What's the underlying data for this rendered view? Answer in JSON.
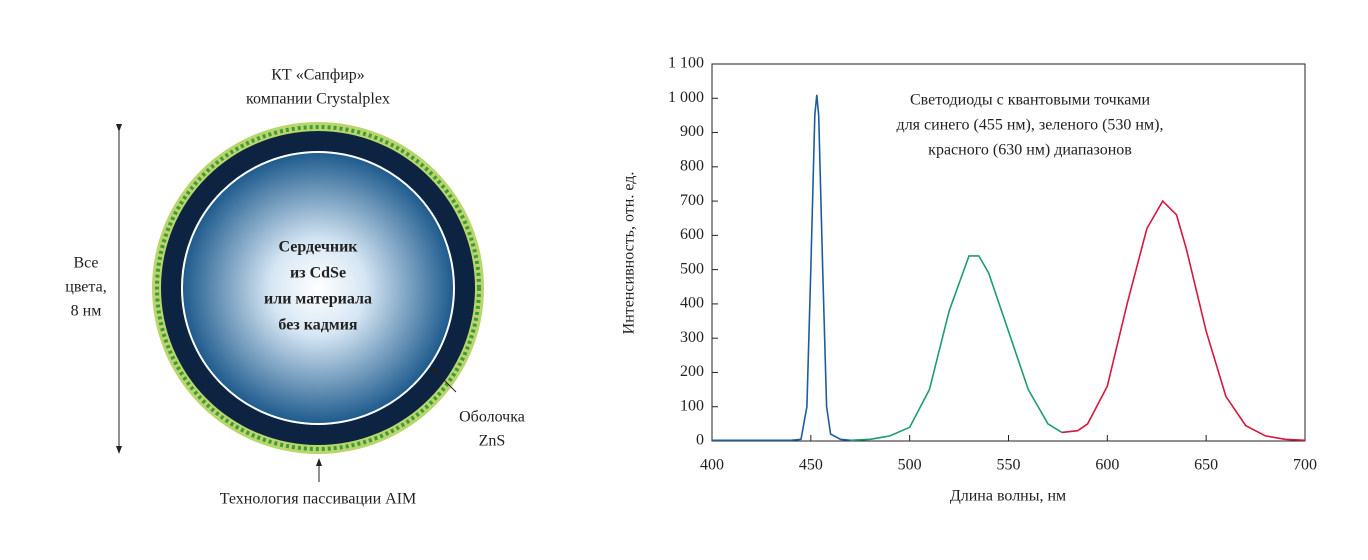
{
  "diagram": {
    "title": [
      "КТ «Сапфир»",
      "компании Crystalplex"
    ],
    "size_label": [
      "Все",
      "цвета,",
      "8 нм"
    ],
    "core_label": [
      "Сердечник",
      "из CdSe",
      "или материала",
      "без кадмия"
    ],
    "shell_label": [
      "Оболочка",
      "ZnS"
    ],
    "bottom_label": "Технология пассивации AIM"
  },
  "chart_data": {
    "type": "line",
    "annotation": [
      "Светодиоды с квантовыми точками",
      "для синего (455 нм), зеленого (530 нм),",
      "красного (630 нм) диапазонов"
    ],
    "xlabel": "Длина волны, нм",
    "ylabel": "Интенсивность, отн. ед.",
    "x": [
      400,
      440,
      445,
      448,
      450,
      452,
      453,
      454,
      456,
      458,
      460,
      465,
      470,
      480,
      490,
      500,
      510,
      520,
      530,
      535,
      540,
      550,
      560,
      570,
      577,
      585,
      590,
      600,
      610,
      620,
      628,
      635,
      640,
      650,
      660,
      670,
      680,
      690,
      700
    ],
    "series": [
      {
        "color": "#1f5c9e",
        "values": [
          2,
          2,
          5,
          100,
          500,
          950,
          1010,
          950,
          500,
          100,
          20,
          5,
          2,
          null,
          null,
          null,
          null,
          null,
          null,
          null,
          null,
          null,
          null,
          null,
          null,
          null,
          null,
          null,
          null,
          null,
          null,
          null,
          null,
          null,
          null,
          null,
          null,
          null,
          null
        ]
      },
      {
        "color": "#1e9a7a",
        "values": [
          null,
          null,
          null,
          null,
          null,
          null,
          null,
          null,
          null,
          null,
          null,
          null,
          2,
          5,
          15,
          40,
          150,
          380,
          540,
          540,
          490,
          320,
          150,
          50,
          25,
          null,
          null,
          null,
          null,
          null,
          null,
          null,
          null,
          null,
          null,
          null,
          null,
          null,
          null
        ]
      },
      {
        "color": "#d4183f",
        "values": [
          null,
          null,
          null,
          null,
          null,
          null,
          null,
          null,
          null,
          null,
          null,
          null,
          null,
          null,
          null,
          null,
          null,
          null,
          null,
          null,
          null,
          null,
          null,
          null,
          25,
          30,
          50,
          160,
          400,
          620,
          700,
          660,
          560,
          320,
          130,
          45,
          15,
          5,
          2
        ]
      }
    ],
    "xlim": [
      400,
      700
    ],
    "xticks": [
      400,
      450,
      500,
      550,
      600,
      650,
      700
    ],
    "ylim": [
      0,
      1100
    ],
    "yticks": [
      0,
      100,
      200,
      300,
      400,
      500,
      600,
      700,
      800,
      900,
      {
        "value": 1000,
        "label": "1 000"
      },
      {
        "value": 1100,
        "label": "1 100"
      }
    ]
  }
}
